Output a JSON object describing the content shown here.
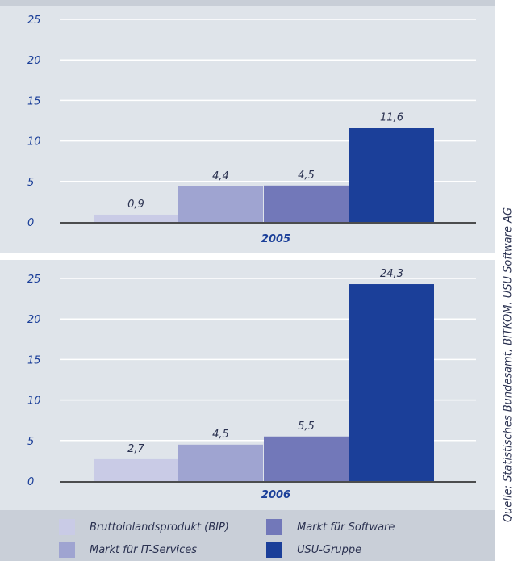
{
  "chart_data": [
    {
      "type": "bar",
      "xlabel": "2005",
      "categories": [
        "Bruttoinlandsprodukt (BIP)",
        "Markt für IT-Services",
        "Markt für Software",
        "USU-Gruppe"
      ],
      "values": [
        0.9,
        4.4,
        4.5,
        11.6
      ],
      "value_labels": [
        "0,9",
        "4,4",
        "4,5",
        "11,6"
      ],
      "ylim": [
        0,
        25
      ],
      "yticks": [
        "0",
        "5",
        "10",
        "15",
        "20",
        "25"
      ],
      "grid": true
    },
    {
      "type": "bar",
      "xlabel": "2006",
      "categories": [
        "Bruttoinlandsprodukt (BIP)",
        "Markt für IT-Services",
        "Markt für Software",
        "USU-Gruppe"
      ],
      "values": [
        2.7,
        4.5,
        5.5,
        24.3
      ],
      "value_labels": [
        "2,7",
        "4,5",
        "5,5",
        "24,3"
      ],
      "ylim": [
        0,
        25
      ],
      "yticks": [
        "0",
        "5",
        "10",
        "15",
        "20",
        "25"
      ],
      "grid": true
    }
  ],
  "legend": {
    "placement": "bottom",
    "items": [
      {
        "label": "Bruttoinlandsprodukt (BIP)",
        "color": "#c9cbe6"
      },
      {
        "label": "Markt für Software",
        "color": "#7278b9"
      },
      {
        "label": "Markt für IT-Services",
        "color": "#9fa4d1"
      },
      {
        "label": "USU-Gruppe",
        "color": "#1b3f99"
      }
    ]
  },
  "source": "Quelle: Statistisches Bundesamt, BITKOM, USU Software AG",
  "colors": {
    "panel_bg": "#dfe4ea",
    "grid": "#ffffff",
    "axis_text": "#1b3f99",
    "value_text": "#2a3150",
    "bars": [
      "#c9cbe6",
      "#9fa4d1",
      "#7278b9",
      "#1b3f99"
    ]
  }
}
